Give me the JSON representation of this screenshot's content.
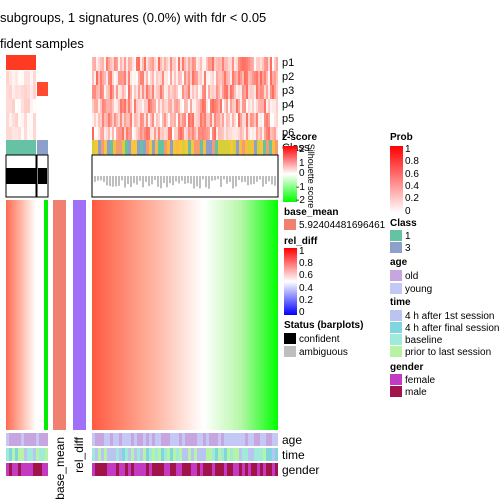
{
  "chart_data": {
    "type": "heatmap",
    "title_line1": "subgroups, 1 signatures (0.0%) with fdr < 0.05",
    "title_line2": "fident samples",
    "prob_rows": [
      "p1",
      "p2",
      "p3",
      "p4",
      "p5",
      "p6"
    ],
    "class_row_label": "Class",
    "silhouette_axis": "Silhouette score",
    "bottom_row_labels": [
      "age",
      "time",
      "gender"
    ],
    "col_labels": [
      "base_mean",
      "rel_diff"
    ],
    "legends": {
      "zscore": {
        "title": "z-score",
        "ticks": [
          "2",
          "1",
          "0",
          "-1",
          "-2"
        ],
        "colors": [
          "#ff0000",
          "#ffffff",
          "#00ff00"
        ]
      },
      "base_mean": {
        "title": "base_mean",
        "value": "5.92404481696461",
        "color": "#f08070"
      },
      "rel_diff": {
        "title": "rel_diff",
        "ticks": [
          "1",
          "0.8",
          "0.6",
          "0.4",
          "0.2",
          "0"
        ],
        "colors": [
          "#ff0000",
          "#ffffff",
          "#0000ff"
        ]
      },
      "status": {
        "title": "Status (barplots)",
        "items": [
          {
            "label": "confident",
            "color": "#000000"
          },
          {
            "label": "ambiguous",
            "color": "#bebebe"
          }
        ]
      },
      "prob": {
        "title": "Prob",
        "ticks": [
          "1",
          "0.8",
          "0.6",
          "0.4",
          "0.2",
          "0"
        ],
        "colors": [
          "#ff0000",
          "#ffffff"
        ]
      },
      "class": {
        "title": "Class",
        "items": [
          {
            "label": "1",
            "color": "#66c2a5"
          },
          {
            "label": "3",
            "color": "#8da0cb"
          }
        ]
      },
      "age": {
        "title": "age",
        "items": [
          {
            "label": "old",
            "color": "#c6a5e0"
          },
          {
            "label": "young",
            "color": "#c4c8f7"
          }
        ]
      },
      "time": {
        "title": "time",
        "items": [
          {
            "label": "4 h after 1st session",
            "color": "#b9c4f0"
          },
          {
            "label": "4 h after final session",
            "color": "#7fd6e0"
          },
          {
            "label": "baseline",
            "color": "#9fead8"
          },
          {
            "label": "prior to last session",
            "color": "#b6f3a4"
          }
        ]
      },
      "gender": {
        "title": "gender",
        "items": [
          {
            "label": "female",
            "color": "#c33ac3"
          },
          {
            "label": "male",
            "color": "#a0144a"
          }
        ]
      }
    }
  }
}
